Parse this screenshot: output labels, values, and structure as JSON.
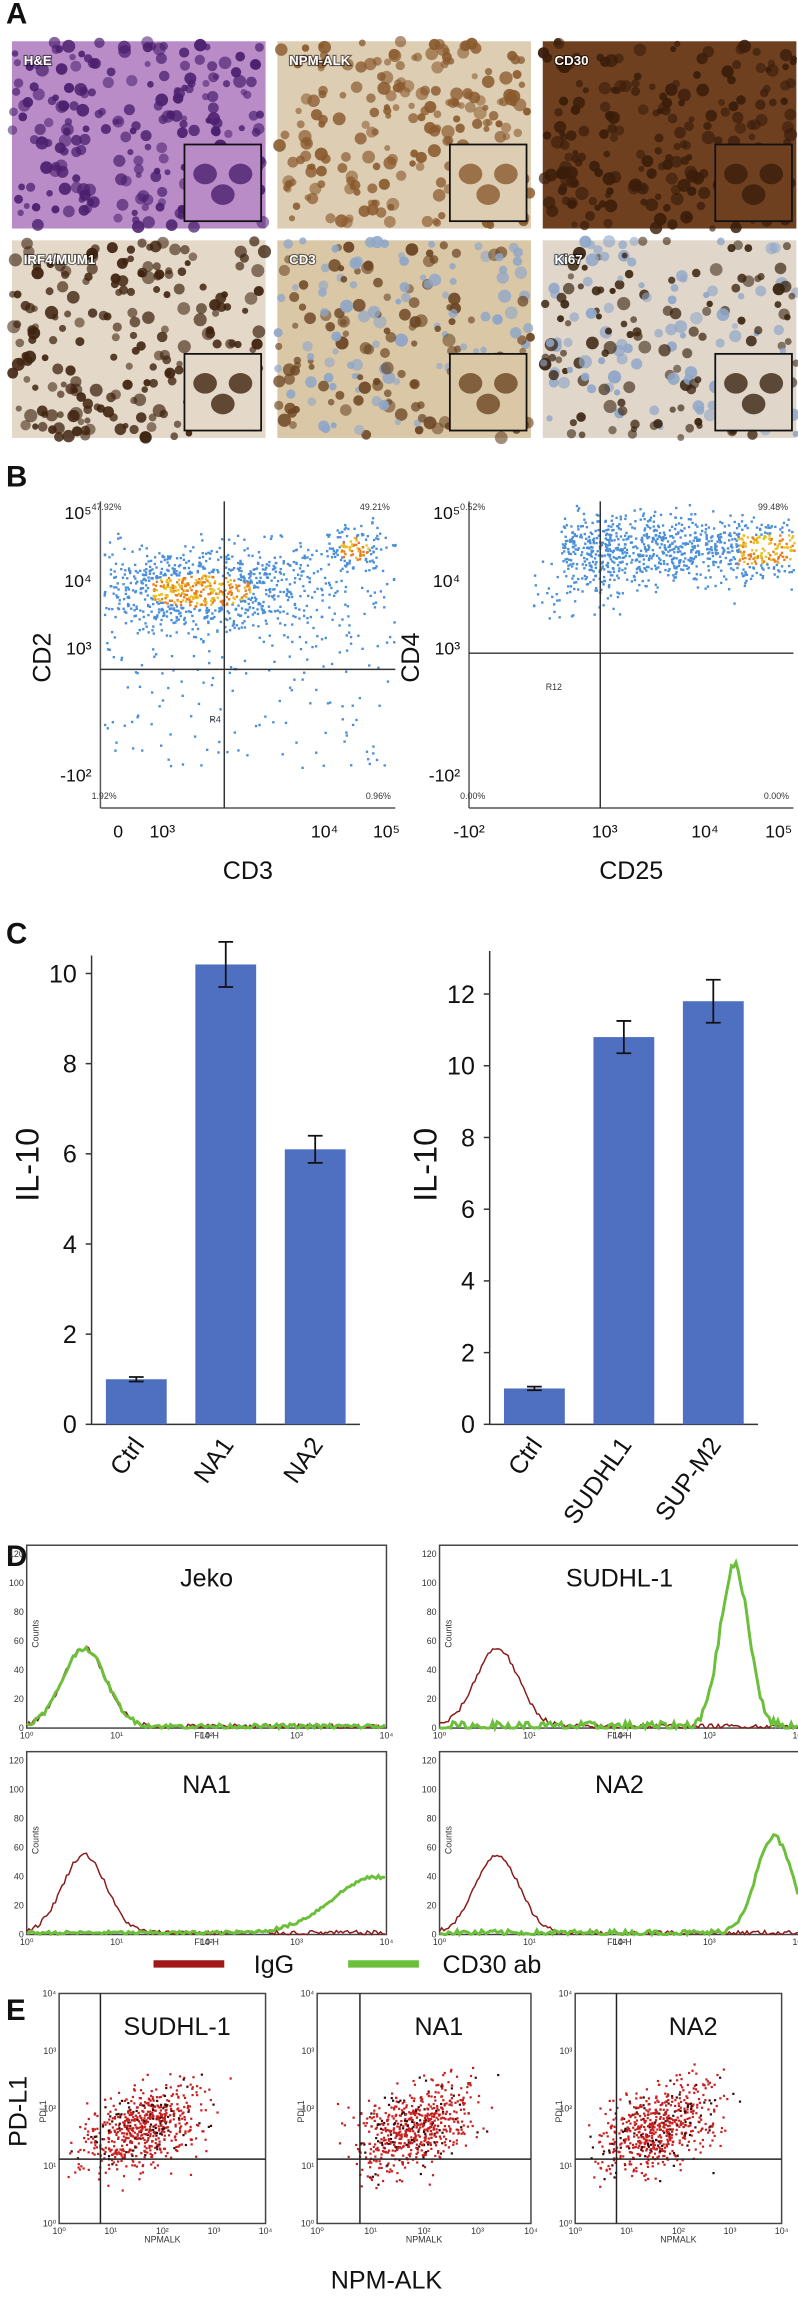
{
  "panel_labels": [
    "A",
    "B",
    "C",
    "D",
    "E"
  ],
  "histology": [
    "H&E",
    "NPM-ALK",
    "CD30",
    "IRF4/MUM1",
    "CD3",
    "Ki67"
  ],
  "flow_b": [
    {
      "x_label": "CD3",
      "y_label": "CD2",
      "quadrants": [
        "47.92%",
        "49.21%",
        "1.92%",
        "0.96%"
      ],
      "gate": "R4",
      "x_ticks": [
        "0",
        "10³",
        "10⁴",
        "10⁵"
      ],
      "y_ticks": [
        "10⁵",
        "10⁴",
        "10³",
        "-10²"
      ]
    },
    {
      "x_label": "CD25",
      "y_label": "CD4",
      "quadrants": [
        "0.52%",
        "99.48%",
        "0.00%",
        "0.00%"
      ],
      "gate": "R12",
      "x_ticks": [
        "-10²",
        "10³",
        "10⁴",
        "10⁵"
      ],
      "y_ticks": [
        "10⁵",
        "10⁴",
        "10³",
        "-10²"
      ]
    }
  ],
  "chart_data": [
    {
      "type": "bar",
      "ylabel": "IL-10",
      "categories": [
        "Ctrl",
        "NA1",
        "NA2"
      ],
      "values": [
        1.0,
        10.2,
        6.1
      ],
      "errors": [
        0.05,
        0.5,
        0.3
      ],
      "color": "#4f6fc0",
      "ylim": [
        0,
        10.4
      ],
      "yticks": [
        0,
        2,
        4,
        6,
        8,
        10
      ]
    },
    {
      "type": "bar",
      "ylabel": "IL-10",
      "categories": [
        "Ctrl",
        "SUDHL1",
        "SUP-M2"
      ],
      "values": [
        1.0,
        10.8,
        11.8
      ],
      "errors": [
        0.05,
        0.45,
        0.6
      ],
      "color": "#4f6fc0",
      "ylim": [
        0,
        13.2
      ],
      "yticks": [
        0,
        2,
        4,
        6,
        8,
        10,
        12
      ]
    }
  ],
  "histograms": {
    "titles": [
      "Jeko",
      "SUDHL-1",
      "NA1",
      "NA2"
    ],
    "y_axis": "Counts",
    "x_axis": "FL4-H",
    "y_ticks": [
      "0",
      "20",
      "40",
      "60",
      "80",
      "100",
      "120"
    ],
    "x_ticks": [
      "10⁰",
      "10¹",
      "10²",
      "10³",
      "10⁴"
    ],
    "legend": [
      "IgG",
      "CD30 ab"
    ]
  },
  "scatter_e": {
    "titles": [
      "SUDHL-1",
      "NA1",
      "NA2"
    ],
    "y_label": "PD-L1",
    "x_label": "NPM-ALK",
    "small_y": "PDL1",
    "small_x": "NPMALK",
    "ticks": [
      "10⁰",
      "10¹",
      "10²",
      "10³",
      "10⁴"
    ]
  }
}
